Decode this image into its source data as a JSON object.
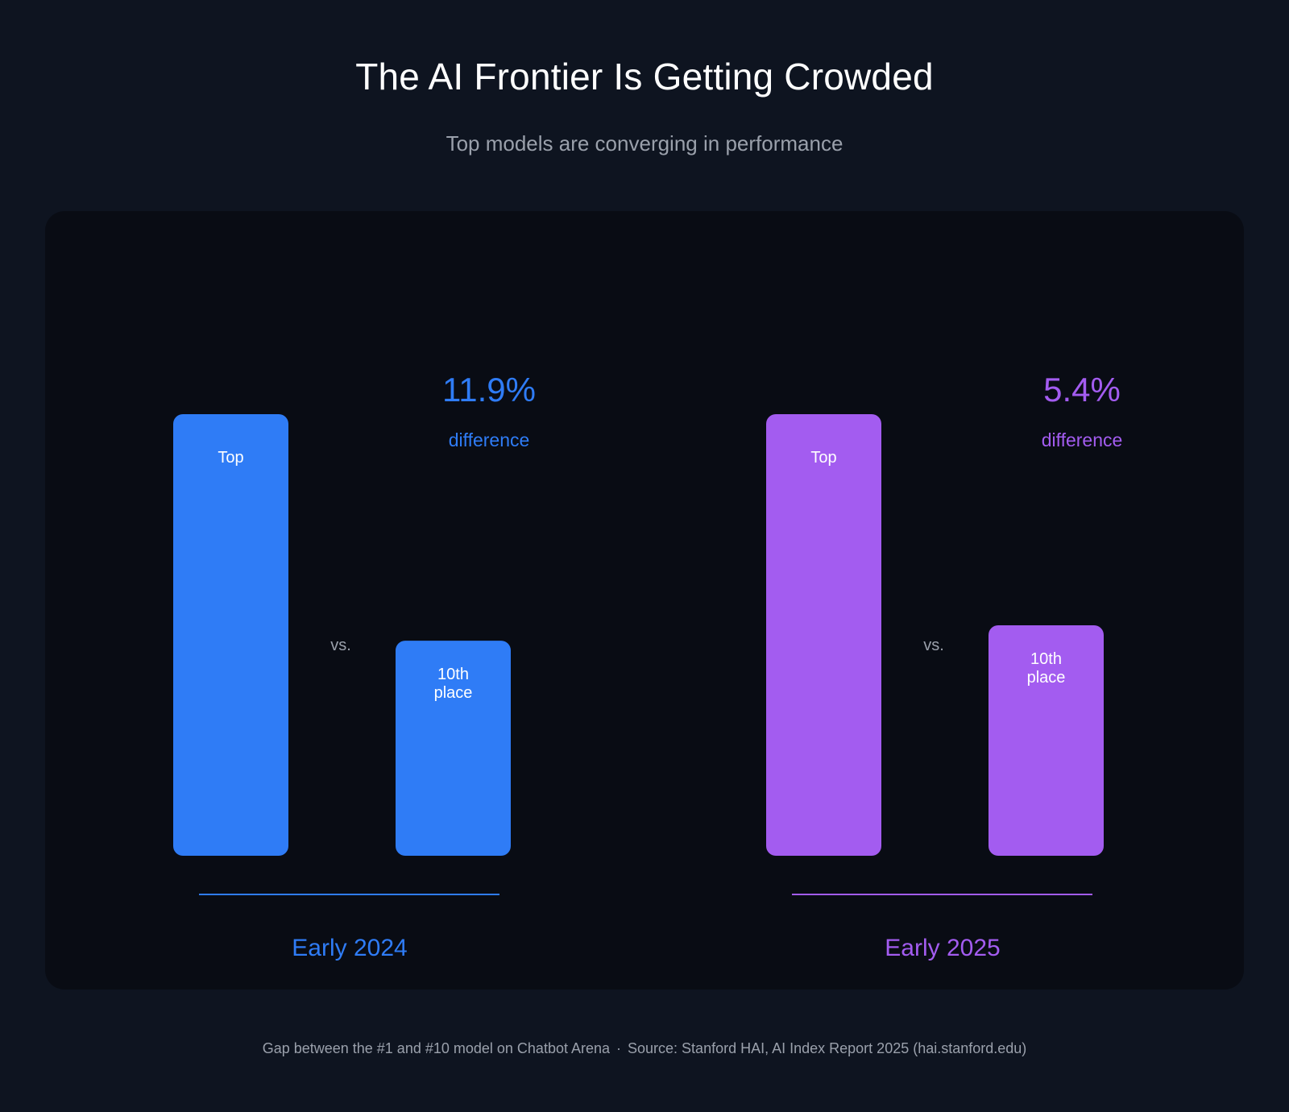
{
  "header": {
    "title": "The AI Frontier Is Getting Crowded",
    "subtitle": "Top models are converging in performance"
  },
  "footer": {
    "note": "Gap between the #1 and #10 model on Chatbot Arena",
    "separator": "·",
    "source": "Source: Stanford HAI, AI Index Report 2025 (hai.stanford.edu)"
  },
  "chart_data": {
    "type": "bar",
    "title": "The AI Frontier Is Getting Crowded",
    "subtitle": "Top models are converging in performance",
    "categories": [
      "Top",
      "10th place"
    ],
    "groups": [
      {
        "name": "Early 2024",
        "color": "#2f7cf6",
        "bar_labels": [
          "Top",
          "10th place"
        ],
        "values": [
          100,
          48.7
        ],
        "difference_value": "11.9%",
        "difference_label": "difference",
        "vs_label": "vs."
      },
      {
        "name": "Early 2025",
        "color": "#a35cf0",
        "bar_labels": [
          "Top",
          "10th place"
        ],
        "values": [
          100,
          52.2
        ],
        "difference_value": "5.4%",
        "difference_label": "difference",
        "vs_label": "vs."
      }
    ],
    "value_units": "relative bar height, top model = 100",
    "ylim": [
      0,
      100
    ],
    "grid": false,
    "legend": "none"
  },
  "colors": {
    "background": "#0e1420",
    "panel": "#090c14",
    "blue": "#2f7cf6",
    "purple": "#a35cf0",
    "muted_text": "#9aa0ab",
    "title_text": "#ffffff"
  }
}
